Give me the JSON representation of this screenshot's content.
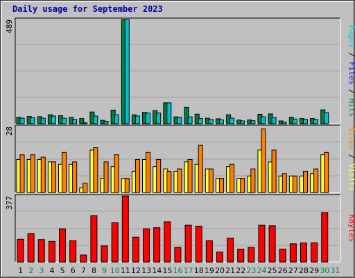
{
  "title": "Daily usage for September 2023",
  "colors": {
    "background": "#c0c0c0",
    "plot_background": "#c0c0c0",
    "grid": "#a0a0a0",
    "hits": "#008040",
    "files": "#00c0d0",
    "pages": "#00c0d0",
    "visits": "#ffff40",
    "sites": "#ff8000",
    "kbytes": "#ff0000",
    "weekday_label": "#000000",
    "weekend_label": "#008040",
    "title": "#0000a0"
  },
  "chart_data": [
    {
      "type": "bar",
      "panel": "top",
      "y_max_label": "489",
      "ylim": [
        0,
        489
      ],
      "grid": true,
      "legend_labels": [
        "Pages",
        "Files",
        "Hits"
      ],
      "legend_separator": " / ",
      "categories": [
        "1",
        "2",
        "3",
        "4",
        "5",
        "6",
        "7",
        "8",
        "9",
        "10",
        "11",
        "12",
        "13",
        "14",
        "15",
        "16",
        "17",
        "18",
        "19",
        "20",
        "21",
        "22",
        "23",
        "24",
        "25",
        "26",
        "27",
        "28",
        "29",
        "30",
        "31"
      ],
      "series": [
        {
          "name": "Hits",
          "values": [
            30,
            34,
            33,
            42,
            38,
            30,
            24,
            55,
            16,
            64,
            489,
            42,
            53,
            62,
            98,
            32,
            77,
            45,
            26,
            23,
            42,
            17,
            18,
            44,
            46,
            13,
            30,
            24,
            24,
            65,
            null
          ]
        },
        {
          "name": "Files",
          "values": [
            26,
            28,
            26,
            36,
            26,
            20,
            4,
            36,
            11,
            42,
            489,
            36,
            50,
            50,
            98,
            30,
            32,
            24,
            20,
            18,
            26,
            13,
            14,
            32,
            30,
            8,
            22,
            20,
            20,
            52,
            null
          ]
        },
        {
          "name": "Pages",
          "values": [
            0,
            0,
            0,
            0,
            0,
            0,
            0,
            0,
            0,
            0,
            0,
            0,
            0,
            0,
            0,
            0,
            0,
            0,
            0,
            0,
            0,
            0,
            0,
            0,
            0,
            0,
            0,
            0,
            0,
            0,
            null
          ]
        }
      ]
    },
    {
      "type": "bar",
      "panel": "middle",
      "y_max_label": "28",
      "ylim": [
        0,
        28
      ],
      "grid": true,
      "legend_labels": [
        "Sites",
        "Visits"
      ],
      "legend_separator": " / ",
      "categories": [
        "1",
        "2",
        "3",
        "4",
        "5",
        "6",
        "7",
        "8",
        "9",
        "10",
        "11",
        "12",
        "13",
        "14",
        "15",
        "16",
        "17",
        "18",
        "19",
        "20",
        "21",
        "22",
        "23",
        "24",
        "25",
        "26",
        "27",
        "28",
        "29",
        "30",
        "31"
      ],
      "series": [
        {
          "name": "Visits",
          "values": [
            14,
            14,
            14,
            13,
            12,
            12,
            2,
            18,
            6,
            11,
            6,
            9,
            14,
            11,
            10,
            9,
            13,
            12,
            10,
            6,
            11,
            6,
            7,
            18,
            13,
            7,
            7,
            7,
            8,
            16,
            null
          ]
        },
        {
          "name": "Sites",
          "values": [
            16,
            16,
            15,
            13,
            17,
            13,
            4,
            19,
            13,
            16,
            6,
            14,
            17,
            14,
            9,
            10,
            14,
            20,
            10,
            6,
            12,
            6,
            10,
            27,
            18,
            8,
            7,
            9,
            10,
            17,
            null
          ]
        }
      ]
    },
    {
      "type": "bar",
      "panel": "bottom",
      "y_max_label": "377",
      "ylim": [
        0,
        377
      ],
      "grid": true,
      "legend_labels": [
        "KBytes"
      ],
      "categories": [
        "1",
        "2",
        "3",
        "4",
        "5",
        "6",
        "7",
        "8",
        "9",
        "10",
        "11",
        "12",
        "13",
        "14",
        "15",
        "16",
        "17",
        "18",
        "19",
        "20",
        "21",
        "22",
        "23",
        "24",
        "25",
        "26",
        "27",
        "28",
        "29",
        "30",
        "31"
      ],
      "series": [
        {
          "name": "KBytes",
          "values": [
            130,
            163,
            128,
            118,
            190,
            122,
            40,
            265,
            92,
            224,
            377,
            142,
            190,
            196,
            230,
            84,
            210,
            205,
            122,
            57,
            137,
            74,
            84,
            210,
            207,
            74,
            104,
            109,
            110,
            282,
            null
          ]
        }
      ]
    }
  ],
  "days": [
    {
      "label": "1",
      "weekend": false
    },
    {
      "label": "2",
      "weekend": true
    },
    {
      "label": "3",
      "weekend": true
    },
    {
      "label": "4",
      "weekend": false
    },
    {
      "label": "5",
      "weekend": false
    },
    {
      "label": "6",
      "weekend": false
    },
    {
      "label": "7",
      "weekend": false
    },
    {
      "label": "8",
      "weekend": false
    },
    {
      "label": "9",
      "weekend": true
    },
    {
      "label": "10",
      "weekend": true
    },
    {
      "label": "11",
      "weekend": false
    },
    {
      "label": "12",
      "weekend": false
    },
    {
      "label": "13",
      "weekend": false
    },
    {
      "label": "14",
      "weekend": false
    },
    {
      "label": "15",
      "weekend": false
    },
    {
      "label": "16",
      "weekend": true
    },
    {
      "label": "17",
      "weekend": true
    },
    {
      "label": "18",
      "weekend": false
    },
    {
      "label": "19",
      "weekend": false
    },
    {
      "label": "20",
      "weekend": false
    },
    {
      "label": "21",
      "weekend": false
    },
    {
      "label": "22",
      "weekend": false
    },
    {
      "label": "23",
      "weekend": true
    },
    {
      "label": "24",
      "weekend": true
    },
    {
      "label": "25",
      "weekend": false
    },
    {
      "label": "26",
      "weekend": false
    },
    {
      "label": "27",
      "weekend": false
    },
    {
      "label": "28",
      "weekend": false
    },
    {
      "label": "29",
      "weekend": false
    },
    {
      "label": "30",
      "weekend": true
    },
    {
      "label": "31",
      "weekend": true
    }
  ]
}
